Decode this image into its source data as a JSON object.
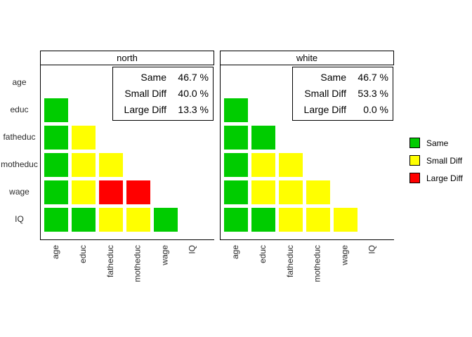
{
  "chart_data": {
    "type": "heatmap",
    "title": "",
    "description": "Faceted lower-triangle pairwise comparison matrix with agreement levels",
    "categories": [
      "age",
      "educ",
      "fatheduc",
      "motheduc",
      "wage",
      "IQ"
    ],
    "value_levels": [
      "Same",
      "Small Diff",
      "Large Diff"
    ],
    "colors": {
      "Same": "#00CC00",
      "Small Diff": "#FFFF00",
      "Large Diff": "#FF0000"
    },
    "layout": {
      "legend_position": "right",
      "grid": false,
      "facets": [
        "north",
        "white"
      ]
    },
    "panels": [
      {
        "title": "north",
        "stats": [
          {
            "label": "Same",
            "value": "46.7 %"
          },
          {
            "label": "Small Diff",
            "value": "40.0 %"
          },
          {
            "label": "Large Diff",
            "value": "13.3 %"
          }
        ],
        "matrix_rows": [
          {
            "row": "educ",
            "cells": [
              "Same"
            ]
          },
          {
            "row": "fatheduc",
            "cells": [
              "Same",
              "Small Diff"
            ]
          },
          {
            "row": "motheduc",
            "cells": [
              "Same",
              "Small Diff",
              "Small Diff"
            ]
          },
          {
            "row": "wage",
            "cells": [
              "Same",
              "Small Diff",
              "Large Diff",
              "Large Diff"
            ]
          },
          {
            "row": "IQ",
            "cells": [
              "Same",
              "Same",
              "Small Diff",
              "Small Diff",
              "Same"
            ]
          }
        ]
      },
      {
        "title": "white",
        "stats": [
          {
            "label": "Same",
            "value": "46.7 %"
          },
          {
            "label": "Small Diff",
            "value": "53.3 %"
          },
          {
            "label": "Large Diff",
            "value": "0.0 %"
          }
        ],
        "matrix_rows": [
          {
            "row": "educ",
            "cells": [
              "Same"
            ]
          },
          {
            "row": "fatheduc",
            "cells": [
              "Same",
              "Same"
            ]
          },
          {
            "row": "motheduc",
            "cells": [
              "Same",
              "Small Diff",
              "Small Diff"
            ]
          },
          {
            "row": "wage",
            "cells": [
              "Same",
              "Small Diff",
              "Small Diff",
              "Small Diff"
            ]
          },
          {
            "row": "IQ",
            "cells": [
              "Same",
              "Same",
              "Small Diff",
              "Small Diff",
              "Small Diff"
            ]
          }
        ]
      }
    ],
    "legend": [
      {
        "label": "Same",
        "color": "#00CC00"
      },
      {
        "label": "Small Diff",
        "color": "#FFFF00"
      },
      {
        "label": "Large Diff",
        "color": "#FF0000"
      }
    ]
  }
}
